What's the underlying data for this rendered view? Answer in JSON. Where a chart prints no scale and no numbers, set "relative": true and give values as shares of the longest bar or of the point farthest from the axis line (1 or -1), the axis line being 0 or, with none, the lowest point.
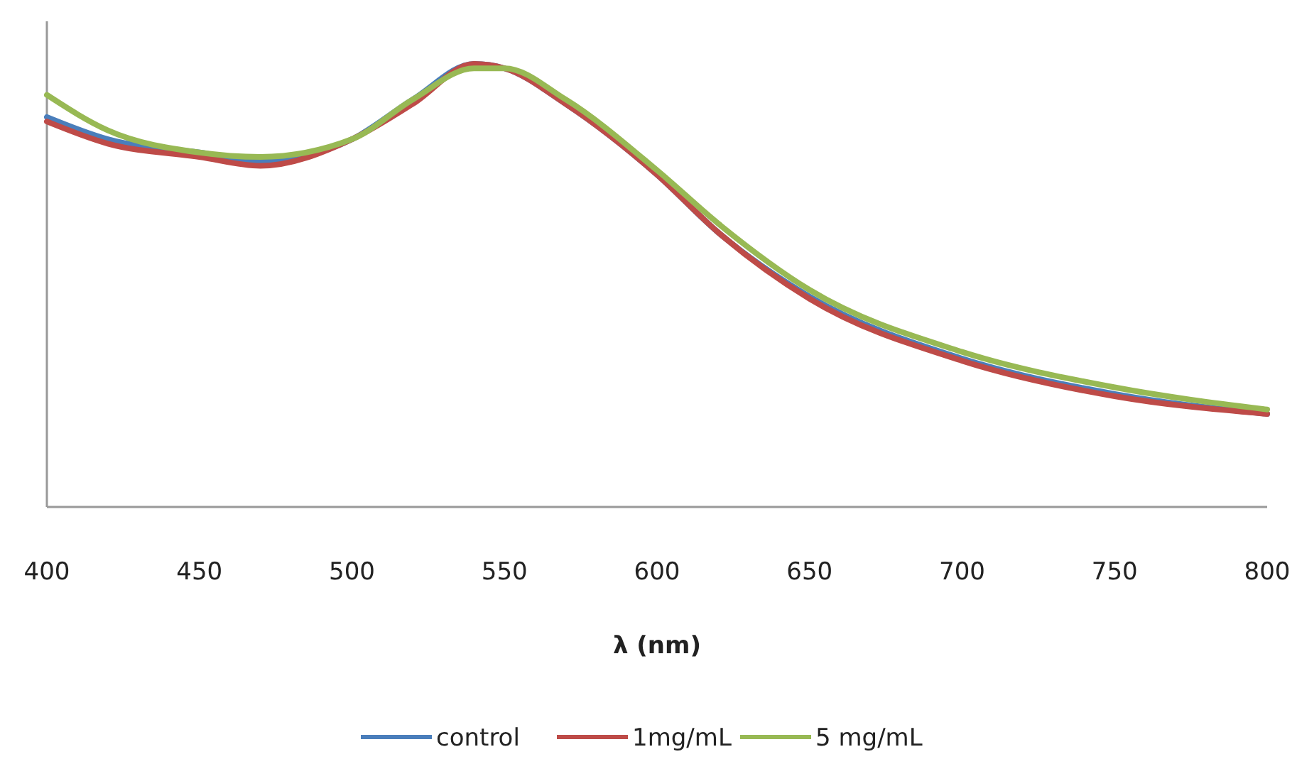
{
  "chart_data": {
    "type": "line",
    "xlabel": "λ (nm)",
    "relative": true,
    "x": [
      400,
      420,
      450,
      470,
      500,
      520,
      540,
      550,
      570,
      600,
      620,
      650,
      700,
      750,
      800
    ],
    "xlim": [
      400,
      800
    ],
    "xticks": [
      400,
      450,
      500,
      550,
      600,
      650,
      700,
      750,
      800
    ],
    "legend": "bottom",
    "grid": false,
    "marker": "none",
    "line_style": "solid",
    "series": [
      {
        "name": "control",
        "color": "#4a7ebb",
        "values": [
          0.88,
          0.83,
          0.8,
          0.78,
          0.83,
          0.92,
          1,
          0.99,
          0.91,
          0.75,
          0.62,
          0.475,
          0.335,
          0.255,
          0.21
        ]
      },
      {
        "name": "1mg/mL",
        "color": "#be4b48",
        "values": [
          0.87,
          0.82,
          0.79,
          0.77,
          0.83,
          0.91,
          1,
          0.99,
          0.91,
          0.75,
          0.62,
          0.47,
          0.33,
          0.25,
          0.21
        ]
      },
      {
        "name": "5 mg/mL",
        "color": "#98b954",
        "values": [
          0.93,
          0.85,
          0.8,
          0.79,
          0.83,
          0.92,
          0.99,
          0.99,
          0.92,
          0.76,
          0.64,
          0.49,
          0.35,
          0.27,
          0.22
        ]
      }
    ]
  }
}
